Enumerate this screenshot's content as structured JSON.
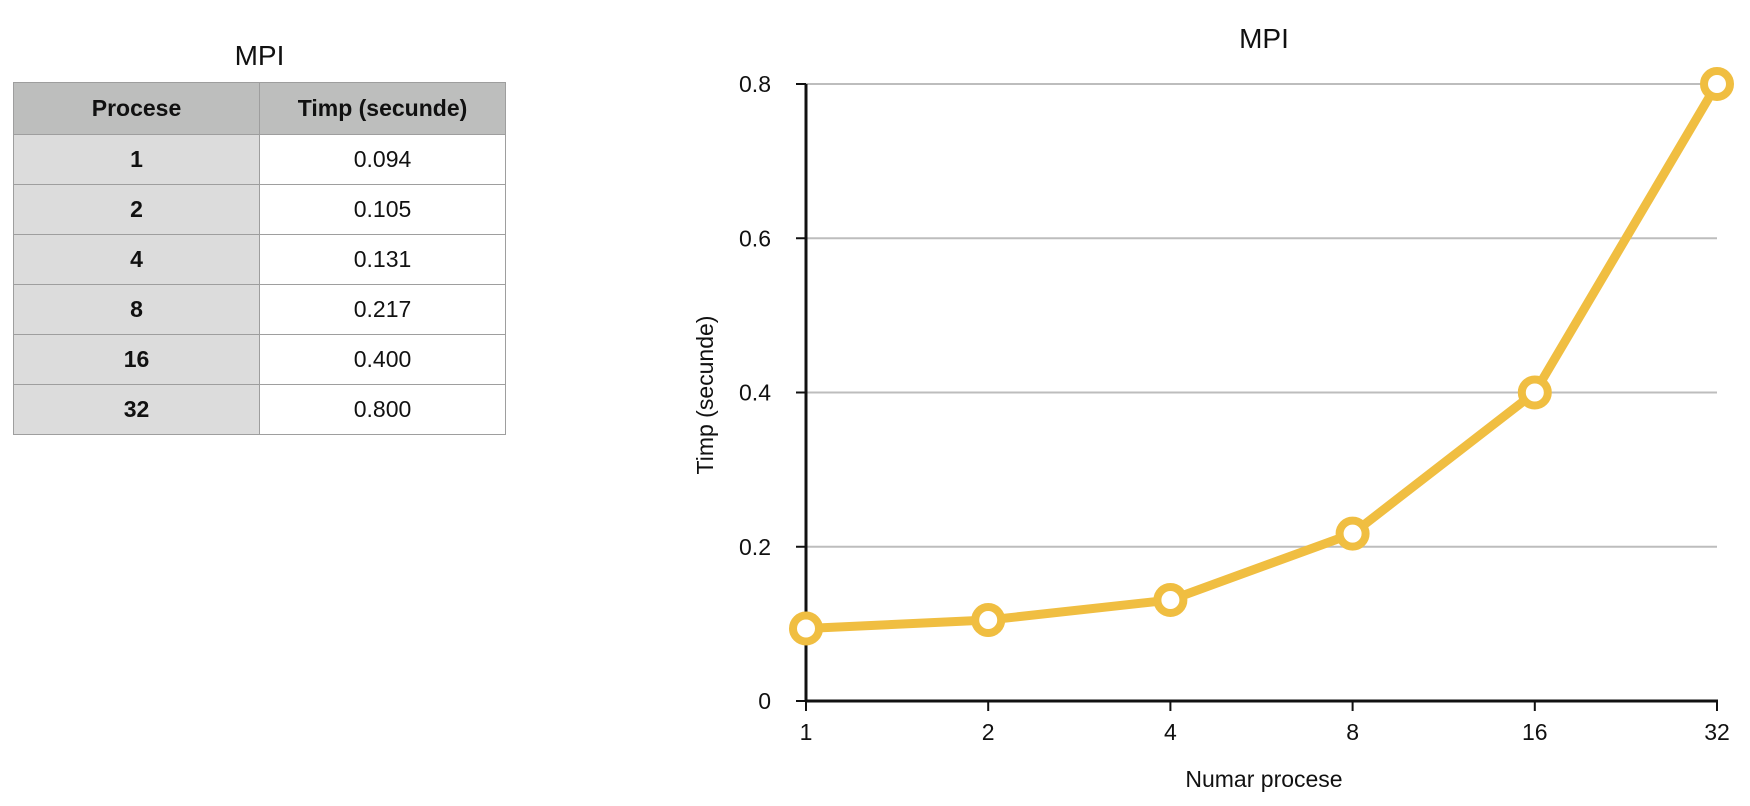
{
  "table": {
    "title": "MPI",
    "headers": [
      "Procese",
      "Timp (secunde)"
    ],
    "rows": [
      [
        "1",
        "0.094"
      ],
      [
        "2",
        "0.105"
      ],
      [
        "4",
        "0.131"
      ],
      [
        "8",
        "0.217"
      ],
      [
        "16",
        "0.400"
      ],
      [
        "32",
        "0.800"
      ]
    ]
  },
  "chart_data": {
    "type": "line",
    "title": "MPI",
    "xlabel": "Numar procese",
    "ylabel": "Timp (secunde)",
    "categories": [
      "1",
      "2",
      "4",
      "8",
      "16",
      "32"
    ],
    "series": [
      {
        "values": [
          0.094,
          0.105,
          0.131,
          0.217,
          0.4,
          0.8
        ]
      }
    ],
    "ylim": [
      0,
      0.8
    ],
    "yticks": [
      0,
      0.2,
      0.4,
      0.6,
      0.8
    ],
    "ytick_labels": [
      "0",
      "0.2",
      "0.4",
      "0.6",
      "0.8"
    ],
    "grid": true,
    "line_color": "#f0be41",
    "grid_color": "#bdbdbd",
    "axis_color": "#111111"
  }
}
